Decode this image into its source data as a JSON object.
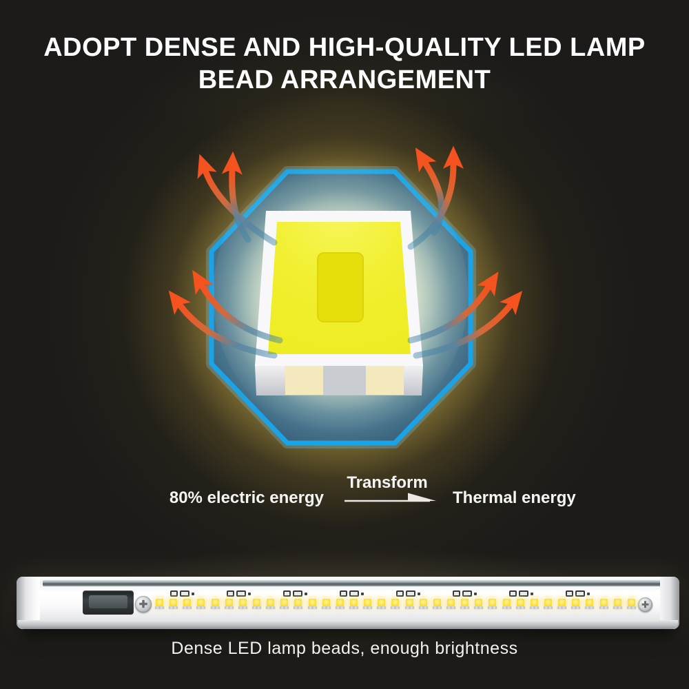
{
  "title": {
    "line1": "ADOPT DENSE AND HIGH-QUALITY LED LAMP",
    "line2": "BEAD ARRANGEMENT"
  },
  "energy_flow": {
    "source_label": "80% electric energy",
    "transform_label": "Transform",
    "result_label": "Thermal energy"
  },
  "caption": "Dense LED lamp beads, enough brightness",
  "strip": {
    "led_count": 35,
    "component_group_count": 8
  },
  "colors": {
    "background": "#1c1b19",
    "octagon_stroke": "#1aa3e6",
    "chip_yellow": "#f0ee2b",
    "chip_die": "#e6df0c",
    "arrow_orange": "#f4521f",
    "arrow_blue": "#3e82a8",
    "glow_gold": "#c6aa46",
    "text": "#ffffff"
  }
}
